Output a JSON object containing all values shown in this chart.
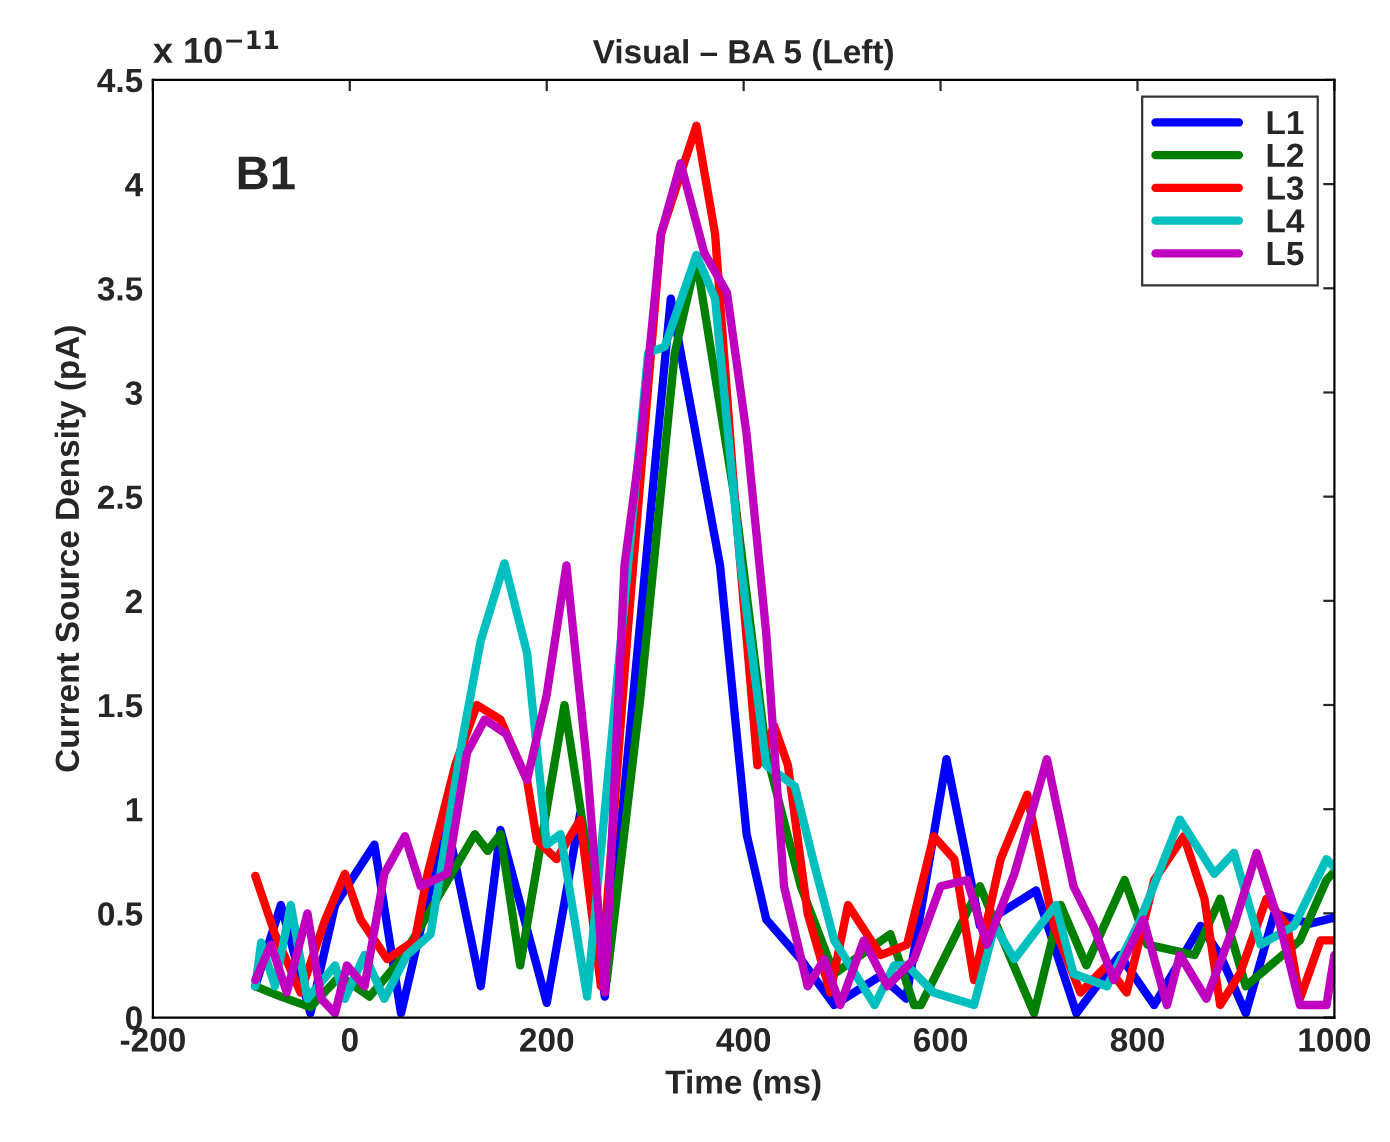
{
  "chart_data": {
    "type": "line",
    "title": "Visual – BA 5 (Left)",
    "xlabel": "Time (ms)",
    "ylabel": "Current Source Density (pA)",
    "annotations": [
      "x 10$^{−11}$",
      "B1"
    ],
    "xlim": [
      -200,
      1000
    ],
    "xticks": [
      -200,
      0,
      200,
      400,
      600,
      800,
      1000
    ],
    "ylim": [
      0,
      4.5
    ],
    "yticks": [
      0,
      0.5,
      1,
      1.5,
      2,
      2.5,
      3,
      3.5,
      4,
      4.5
    ],
    "grid": false,
    "legend": "top right",
    "marker": "none",
    "line_style": "solid",
    "series": [
      {
        "name": "L1",
        "color": "#0000ff",
        "x": [
          -96,
          -70,
          -40,
          -15,
          25,
          52,
          98,
          133,
          153,
          200,
          234,
          259,
          326,
          376,
          403,
          423,
          458,
          492,
          539,
          565,
          606,
          640,
          697,
          738,
          782,
          817,
          864,
          884,
          910,
          939,
          975,
          1000
        ],
        "values": [
          0.15,
          0.54,
          0.02,
          0.54,
          0.83,
          0.02,
          0.95,
          0.15,
          0.9,
          0.07,
          0.98,
          0.1,
          3.45,
          2.17,
          0.88,
          0.47,
          0.28,
          0.06,
          0.2,
          0.09,
          1.24,
          0.44,
          0.61,
          0.02,
          0.3,
          0.06,
          0.44,
          0.3,
          0.02,
          0.5,
          0.45,
          0.48
        ]
      },
      {
        "name": "L2",
        "color": "#008000",
        "x": [
          -96,
          -70,
          -40,
          -10,
          20,
          52,
          80,
          127,
          140,
          153,
          173,
          218,
          261,
          295,
          330,
          352,
          391,
          423,
          458,
          492,
          549,
          573,
          580,
          640,
          695,
          722,
          748,
          787,
          810,
          858,
          884,
          910,
          965,
          992,
          1000
        ],
        "values": [
          0.15,
          0.1,
          0.05,
          0.2,
          0.1,
          0.28,
          0.5,
          0.88,
          0.8,
          0.88,
          0.25,
          1.5,
          0.18,
          1.53,
          3.19,
          3.64,
          2.49,
          1.27,
          0.63,
          0.21,
          0.4,
          0.06,
          0.06,
          0.63,
          0.02,
          0.54,
          0.25,
          0.66,
          0.35,
          0.3,
          0.57,
          0.15,
          0.37,
          0.66,
          0.7
        ]
      },
      {
        "name": "L3",
        "color": "#ff0000",
        "x": [
          -96,
          -76,
          -50,
          -25,
          -5,
          11,
          38,
          66,
          79,
          107,
          129,
          153,
          180,
          190,
          210,
          234,
          255,
          282,
          316,
          352,
          371,
          391,
          414,
          431,
          445,
          465,
          488,
          506,
          539,
          566,
          593,
          614,
          634,
          661,
          688,
          715,
          742,
          769,
          789,
          817,
          847,
          868,
          884,
          904,
          931,
          952,
          965,
          986,
          1000
        ],
        "values": [
          0.68,
          0.4,
          0.12,
          0.47,
          0.69,
          0.47,
          0.28,
          0.37,
          0.69,
          1.21,
          1.5,
          1.43,
          1.14,
          0.85,
          0.76,
          0.95,
          0.15,
          1.84,
          3.76,
          4.28,
          3.76,
          2.49,
          1.21,
          1.4,
          1.21,
          0.5,
          0.12,
          0.54,
          0.3,
          0.35,
          0.87,
          0.76,
          0.18,
          0.76,
          1.07,
          0.44,
          0.12,
          0.25,
          0.12,
          0.66,
          0.87,
          0.57,
          0.06,
          0.21,
          0.57,
          0.44,
          0.09,
          0.37,
          0.37
        ]
      },
      {
        "name": "L4",
        "color": "#00bfbf",
        "x": [
          -96,
          -90,
          -76,
          -60,
          -43,
          -15,
          -5,
          15,
          35,
          58,
          82,
          113,
          133,
          157,
          180,
          200,
          214,
          241,
          289,
          303,
          320,
          352,
          371,
          397,
          423,
          452,
          472,
          492,
          533,
          553,
          566,
          593,
          634,
          655,
          675,
          717,
          735,
          769,
          803,
          843,
          878,
          898,
          925,
          959,
          992,
          1000
        ],
        "values": [
          0.15,
          0.36,
          0.15,
          0.54,
          0.09,
          0.25,
          0.09,
          0.3,
          0.09,
          0.3,
          0.4,
          1.3,
          1.81,
          2.18,
          1.75,
          0.83,
          0.88,
          0.1,
          2.49,
          3.19,
          3.22,
          3.66,
          3.45,
          2.17,
          1.21,
          1.11,
          0.73,
          0.37,
          0.06,
          0.25,
          0.25,
          0.12,
          0.06,
          0.44,
          0.28,
          0.54,
          0.21,
          0.15,
          0.47,
          0.95,
          0.69,
          0.79,
          0.35,
          0.44,
          0.76,
          0.72
        ]
      },
      {
        "name": "L5",
        "color": "#bf00bf",
        "x": [
          -96,
          -80,
          -64,
          -43,
          -29,
          -15,
          -3,
          15,
          35,
          56,
          72,
          99,
          119,
          137,
          159,
          180,
          200,
          220,
          241,
          259,
          279,
          295,
          316,
          336,
          360,
          383,
          403,
          423,
          441,
          465,
          482,
          498,
          522,
          546,
          573,
          600,
          627,
          647,
          675,
          708,
          735,
          755,
          776,
          806,
          830,
          843,
          870,
          898,
          921,
          945,
          965,
          992,
          1000
        ],
        "values": [
          0.18,
          0.35,
          0.12,
          0.5,
          0.09,
          0.02,
          0.25,
          0.15,
          0.69,
          0.87,
          0.63,
          0.69,
          1.27,
          1.43,
          1.36,
          1.14,
          1.55,
          2.17,
          1.21,
          0.12,
          2.17,
          2.74,
          3.76,
          4.1,
          3.67,
          3.48,
          2.8,
          1.84,
          0.63,
          0.15,
          0.28,
          0.06,
          0.37,
          0.15,
          0.28,
          0.63,
          0.66,
          0.35,
          0.69,
          1.24,
          0.63,
          0.44,
          0.18,
          0.47,
          0.06,
          0.3,
          0.09,
          0.44,
          0.79,
          0.44,
          0.06,
          0.06,
          0.3
        ]
      }
    ]
  }
}
